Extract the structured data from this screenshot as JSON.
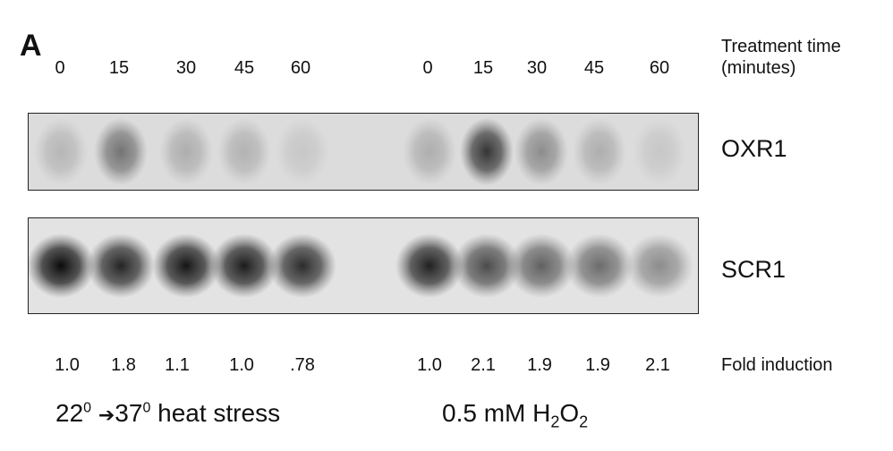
{
  "panel_letter": "A",
  "treatment_label": {
    "line1": "Treatment time",
    "line2": "(minutes)"
  },
  "time_points": [
    "0",
    "15",
    "30",
    "45",
    "60",
    "0",
    "15",
    "30",
    "45",
    "60"
  ],
  "bands": {
    "top": "OXR1",
    "bottom": "SCR1"
  },
  "fold_label": "Fold induction",
  "fold_values": [
    "1.0",
    "1.8",
    "1.1",
    "1.0",
    ".78",
    "1.0",
    "2.1",
    "1.9",
    "1.9",
    "2.1"
  ],
  "conditions": {
    "heat": {
      "from": "22",
      "from_sup": "0",
      "arrow": "➔",
      "to": "37",
      "to_sup": "0",
      "rest": "heat stress"
    },
    "h2o2": {
      "prefix": "0.5 mM H",
      "sub1": "2",
      "mid": "O",
      "sub2": "2"
    }
  },
  "blot": {
    "oxr1_intensity": [
      0.18,
      0.5,
      0.22,
      0.2,
      0.1,
      0.22,
      0.8,
      0.38,
      0.22,
      0.1
    ],
    "scr1_intensity": [
      1.0,
      0.88,
      0.95,
      0.92,
      0.85,
      0.9,
      0.7,
      0.6,
      0.55,
      0.4
    ]
  }
}
